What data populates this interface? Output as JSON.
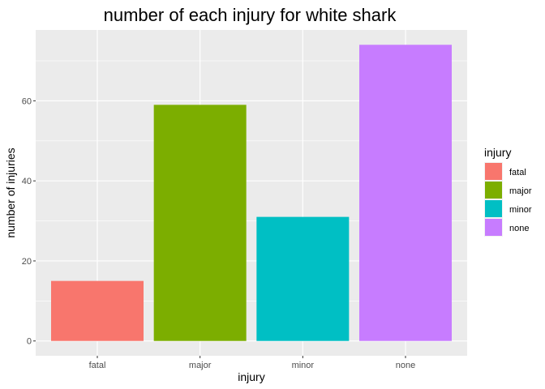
{
  "chart_data": {
    "type": "bar",
    "title": "number of each injury for white shark",
    "xlabel": "injury",
    "ylabel": "number of injuries",
    "categories": [
      "fatal",
      "major",
      "minor",
      "none"
    ],
    "values": [
      15,
      59,
      31,
      74
    ],
    "colors": [
      "#F8766D",
      "#7CAE00",
      "#00BFC4",
      "#C77CFF"
    ],
    "ylim": [
      -3.7,
      77.7
    ],
    "yticks": [
      0,
      20,
      40,
      60
    ],
    "ytick_labels": [
      "0",
      "20",
      "40",
      "60"
    ],
    "grid": true,
    "panel_background": "#EBEBEB",
    "legend": {
      "title": "injury",
      "position": "right",
      "entries": [
        "fatal",
        "major",
        "minor",
        "none"
      ]
    }
  }
}
